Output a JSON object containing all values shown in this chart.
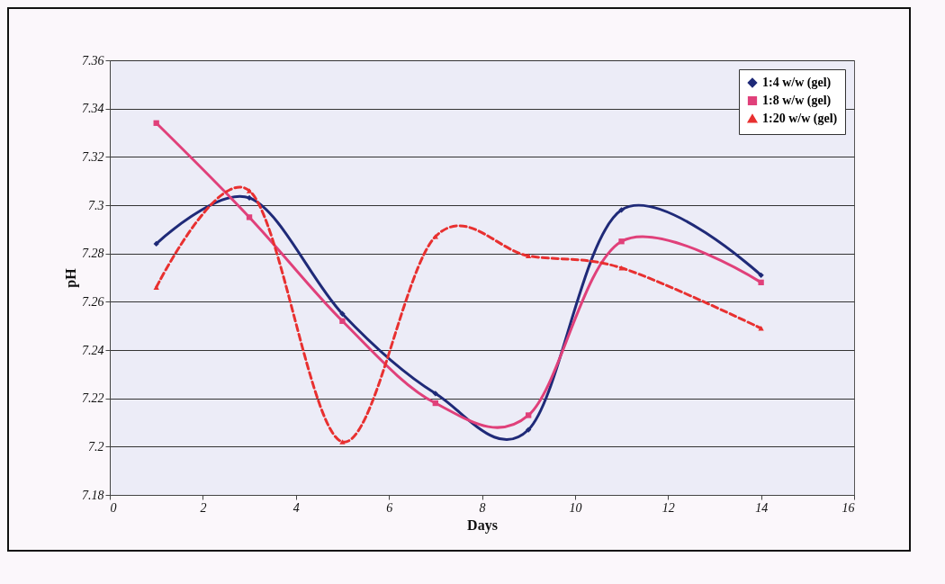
{
  "chart_data": {
    "type": "line",
    "xlabel": "Days",
    "ylabel": "pH",
    "x": [
      1,
      3,
      5,
      7,
      9,
      11,
      14
    ],
    "series": [
      {
        "name": "1:4 w/w (gel)",
        "color": "#1f2a78",
        "marker": "diamond",
        "line_style": "solid",
        "values": [
          7.284,
          7.303,
          7.255,
          7.222,
          7.207,
          7.298,
          7.271
        ]
      },
      {
        "name": "1:8 w/w (gel)",
        "color": "#e0407a",
        "marker": "square",
        "line_style": "solid",
        "values": [
          7.334,
          7.295,
          7.252,
          7.218,
          7.213,
          7.285,
          7.268
        ]
      },
      {
        "name": "1:20 w/w (gel)",
        "color": "#e83030",
        "marker": "triangle",
        "line_style": "dashed",
        "values": [
          7.266,
          7.306,
          7.202,
          7.287,
          7.279,
          7.274,
          7.249
        ]
      }
    ],
    "xlim": [
      0,
      16
    ],
    "xticks": [
      0,
      2,
      4,
      6,
      8,
      10,
      12,
      14,
      16
    ],
    "ylim": [
      7.18,
      7.36
    ],
    "yticks": [
      7.18,
      7.2,
      7.22,
      7.24,
      7.26,
      7.28,
      7.3,
      7.32,
      7.34,
      7.36
    ],
    "grid": "y",
    "legend": "top right"
  }
}
